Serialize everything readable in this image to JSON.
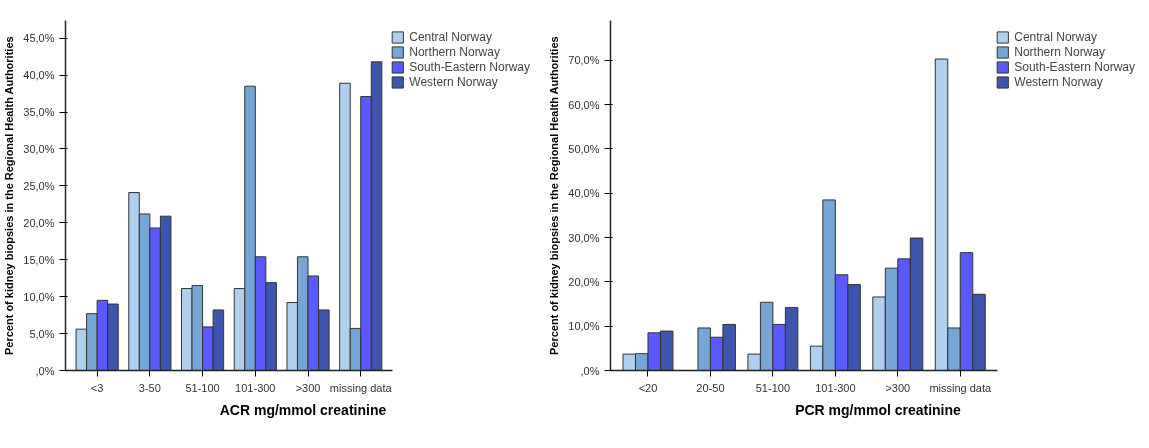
{
  "chart_data": [
    {
      "type": "bar",
      "xlabel": "ACR mg/mmol creatinine",
      "ylabel": "Percent of kidney biopsies in the Regional Health Authorities",
      "categories": [
        "<3",
        "3-50",
        "51-100",
        "101-300",
        ">300",
        "missing data"
      ],
      "series": [
        {
          "name": "Central Norway",
          "color": "#aecfee",
          "values": [
            5.6,
            24.1,
            11.1,
            11.1,
            9.2,
            38.9
          ]
        },
        {
          "name": "Northern Norway",
          "color": "#76a6d6",
          "values": [
            7.7,
            21.2,
            11.5,
            38.5,
            15.4,
            5.7
          ]
        },
        {
          "name": "South-Eastern Norway",
          "color": "#5a5aff",
          "values": [
            9.5,
            19.3,
            5.9,
            15.4,
            12.8,
            37.1
          ]
        },
        {
          "name": "Western Norway",
          "color": "#3d55ad",
          "values": [
            9.0,
            20.9,
            8.2,
            11.9,
            8.2,
            41.8
          ]
        }
      ],
      "ylim": [
        0,
        47.4
      ],
      "yticks": [
        {
          "value": 0,
          "label": ",0%"
        },
        {
          "value": 5,
          "label": "5,0%"
        },
        {
          "value": 10,
          "label": "10,0%"
        },
        {
          "value": 15,
          "label": "15,0%"
        },
        {
          "value": 20,
          "label": "20,0%"
        },
        {
          "value": 25,
          "label": "25,0%"
        },
        {
          "value": 30,
          "label": "30,0%"
        },
        {
          "value": 35,
          "label": "35,0%"
        },
        {
          "value": 40,
          "label": "40,0%"
        },
        {
          "value": 45,
          "label": "45,0%"
        }
      ],
      "grid": false,
      "legend": "top right"
    },
    {
      "type": "bar",
      "xlabel": "PCR mg/mmol creatinine",
      "ylabel": "Percent of kidney biopsies in the Regional Health Authorities",
      "categories": [
        "<20",
        "20-50",
        "51-100",
        "101-300",
        ">300",
        "missing data"
      ],
      "series": [
        {
          "name": "Central Norway",
          "color": "#aecfee",
          "values": [
            3.7,
            null,
            3.7,
            5.5,
            16.6,
            70.3
          ]
        },
        {
          "name": "Northern Norway",
          "color": "#76a6d6",
          "values": [
            3.8,
            9.6,
            15.4,
            38.5,
            23.1,
            9.6
          ]
        },
        {
          "name": "South-Eastern Norway",
          "color": "#5a5aff",
          "values": [
            8.5,
            7.5,
            10.4,
            21.6,
            25.2,
            26.6
          ]
        },
        {
          "name": "Western Norway",
          "color": "#3d55ad",
          "values": [
            8.9,
            10.4,
            14.2,
            19.4,
            29.9,
            17.2
          ]
        }
      ],
      "ylim": [
        0,
        79
      ],
      "yticks": [
        {
          "value": 0,
          "label": ",0%"
        },
        {
          "value": 10,
          "label": "10,0%"
        },
        {
          "value": 20,
          "label": "20,0%"
        },
        {
          "value": 30,
          "label": "30,0%"
        },
        {
          "value": 40,
          "label": "40,0%"
        },
        {
          "value": 50,
          "label": "50,0%"
        },
        {
          "value": 60,
          "label": "60,0%"
        },
        {
          "value": 70,
          "label": "70,0%"
        }
      ],
      "grid": false,
      "legend": "top right"
    }
  ]
}
